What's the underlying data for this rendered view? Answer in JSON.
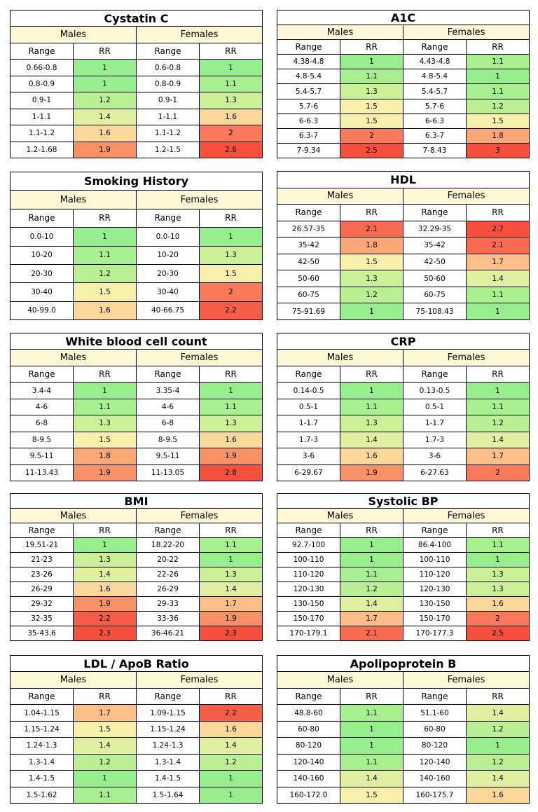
{
  "labels": {
    "males": "Males",
    "females": "Females",
    "range": "Range",
    "rr": "RR"
  },
  "chart_data": [
    {
      "type": "table",
      "title": "Cystatin C",
      "males": [
        [
          "0.66-0.8",
          1
        ],
        [
          "0.8-0.9",
          1
        ],
        [
          "0.9-1",
          1.2
        ],
        [
          "1-1.1",
          1.4
        ],
        [
          "1.1-1.2",
          1.6
        ],
        [
          "1.2-1.68",
          1.9
        ]
      ],
      "females": [
        [
          "0.6-0.8",
          1
        ],
        [
          "0.8-0.9",
          1.1
        ],
        [
          "0.9-1",
          1.3
        ],
        [
          "1-1.1",
          1.6
        ],
        [
          "1.1-1.2",
          2
        ],
        [
          "1.2-1.5",
          2.6
        ]
      ]
    },
    {
      "type": "table",
      "title": "A1C",
      "males": [
        [
          "4.38-4.8",
          1
        ],
        [
          "4.8-5.4",
          1.1
        ],
        [
          "5.4-5.7",
          1.3
        ],
        [
          "5.7-6",
          1.5
        ],
        [
          "6-6.3",
          1.5
        ],
        [
          "6.3-7",
          2
        ],
        [
          "7-9.34",
          2.5
        ]
      ],
      "females": [
        [
          "4.43-4.8",
          1.1
        ],
        [
          "4.8-5.4",
          1
        ],
        [
          "5.4-5.7",
          1.1
        ],
        [
          "5.7-6",
          1.2
        ],
        [
          "6-6.3",
          1.5
        ],
        [
          "6.3-7",
          1.8
        ],
        [
          "7-8.43",
          3
        ]
      ]
    },
    {
      "type": "table",
      "title": "Smoking History",
      "males": [
        [
          "0.0-10",
          1
        ],
        [
          "10-20",
          1.1
        ],
        [
          "20-30",
          1.2
        ],
        [
          "30-40",
          1.5
        ],
        [
          "40-99.0",
          1.6
        ]
      ],
      "females": [
        [
          "0.0-10",
          1
        ],
        [
          "10-20",
          1.3
        ],
        [
          "20-30",
          1.5
        ],
        [
          "30-40",
          2
        ],
        [
          "40-66.75",
          2.2
        ]
      ]
    },
    {
      "type": "table",
      "title": "HDL",
      "males": [
        [
          "26.57-35",
          2.1
        ],
        [
          "35-42",
          1.8
        ],
        [
          "42-50",
          1.5
        ],
        [
          "50-60",
          1.3
        ],
        [
          "60-75",
          1.2
        ],
        [
          "75-91.69",
          1
        ]
      ],
      "females": [
        [
          "32.29-35",
          2.7
        ],
        [
          "35-42",
          2.1
        ],
        [
          "42-50",
          1.7
        ],
        [
          "50-60",
          1.4
        ],
        [
          "60-75",
          1.1
        ],
        [
          "75-108.43",
          1
        ]
      ]
    },
    {
      "type": "table",
      "title": "White blood cell count",
      "males": [
        [
          "3.4-4",
          1
        ],
        [
          "4-6",
          1.1
        ],
        [
          "6-8",
          1.3
        ],
        [
          "8-9.5",
          1.5
        ],
        [
          "9.5-11",
          1.8
        ],
        [
          "11-13.43",
          1.9
        ]
      ],
      "females": [
        [
          "3.35-4",
          1
        ],
        [
          "4-6",
          1.1
        ],
        [
          "6-8",
          1.3
        ],
        [
          "8-9.5",
          1.6
        ],
        [
          "9.5-11",
          1.9
        ],
        [
          "11-13.05",
          2.8
        ]
      ]
    },
    {
      "type": "table",
      "title": "CRP",
      "males": [
        [
          "0.14-0.5",
          1
        ],
        [
          "0.5-1",
          1.1
        ],
        [
          "1-1.7",
          1.3
        ],
        [
          "1.7-3",
          1.4
        ],
        [
          "3-6",
          1.6
        ],
        [
          "6-29.67",
          1.9
        ]
      ],
      "females": [
        [
          "0.13-0.5",
          1
        ],
        [
          "0.5-1",
          1.1
        ],
        [
          "1-1.7",
          1.2
        ],
        [
          "1.7-3",
          1.4
        ],
        [
          "3-6",
          1.7
        ],
        [
          "6-27.63",
          2
        ]
      ]
    },
    {
      "type": "table",
      "title": "BMI",
      "males": [
        [
          "19.51-21",
          1
        ],
        [
          "21-23",
          1.3
        ],
        [
          "23-26",
          1.4
        ],
        [
          "26-29",
          1.6
        ],
        [
          "29-32",
          1.9
        ],
        [
          "32-35",
          2.2
        ],
        [
          "35-43.6",
          2.3
        ]
      ],
      "females": [
        [
          "18.22-20",
          1.1
        ],
        [
          "20-22",
          1
        ],
        [
          "22-26",
          1.3
        ],
        [
          "26-29",
          1.4
        ],
        [
          "29-33",
          1.7
        ],
        [
          "33-36",
          1.9
        ],
        [
          "36-46.21",
          2.3
        ]
      ]
    },
    {
      "type": "table",
      "title": "Systolic BP",
      "males": [
        [
          "92.7-100",
          1
        ],
        [
          "100-110",
          1
        ],
        [
          "110-120",
          1.1
        ],
        [
          "120-130",
          1.2
        ],
        [
          "130-150",
          1.4
        ],
        [
          "150-170",
          1.7
        ],
        [
          "170-179.1",
          2.1
        ]
      ],
      "females": [
        [
          "86.4-100",
          1.1
        ],
        [
          "100-110",
          1
        ],
        [
          "110-120",
          1.3
        ],
        [
          "120-130",
          1.3
        ],
        [
          "130-150",
          1.6
        ],
        [
          "150-170",
          2
        ],
        [
          "170-177.3",
          2.5
        ]
      ]
    },
    {
      "type": "table",
      "title": "LDL / ApoB Ratio",
      "males": [
        [
          "1.04-1.15",
          1.7
        ],
        [
          "1.15-1.24",
          1.5
        ],
        [
          "1.24-1.3",
          1.4
        ],
        [
          "1.3-1.4",
          1.2
        ],
        [
          "1.4-1.5",
          1
        ],
        [
          "1.5-1.62",
          1.1
        ]
      ],
      "females": [
        [
          "1.09-1.15",
          2.2
        ],
        [
          "1.15-1.24",
          1.6
        ],
        [
          "1.24-1.3",
          1.4
        ],
        [
          "1.3-1.4",
          1.2
        ],
        [
          "1.4-1.5",
          1
        ],
        [
          "1.5-1.64",
          1
        ]
      ]
    },
    {
      "type": "table",
      "title": "Apolipoprotein B",
      "males": [
        [
          "48.8-60",
          1.1
        ],
        [
          "60-80",
          1
        ],
        [
          "80-120",
          1
        ],
        [
          "120-140",
          1.1
        ],
        [
          "140-160",
          1.4
        ],
        [
          "160-172.0",
          1.5
        ]
      ],
      "females": [
        [
          "51.1-60",
          1.4
        ],
        [
          "60-80",
          1.2
        ],
        [
          "80-120",
          1
        ],
        [
          "120-140",
          1.2
        ],
        [
          "140-160",
          1.4
        ],
        [
          "160-175.7",
          1.6
        ]
      ]
    }
  ]
}
